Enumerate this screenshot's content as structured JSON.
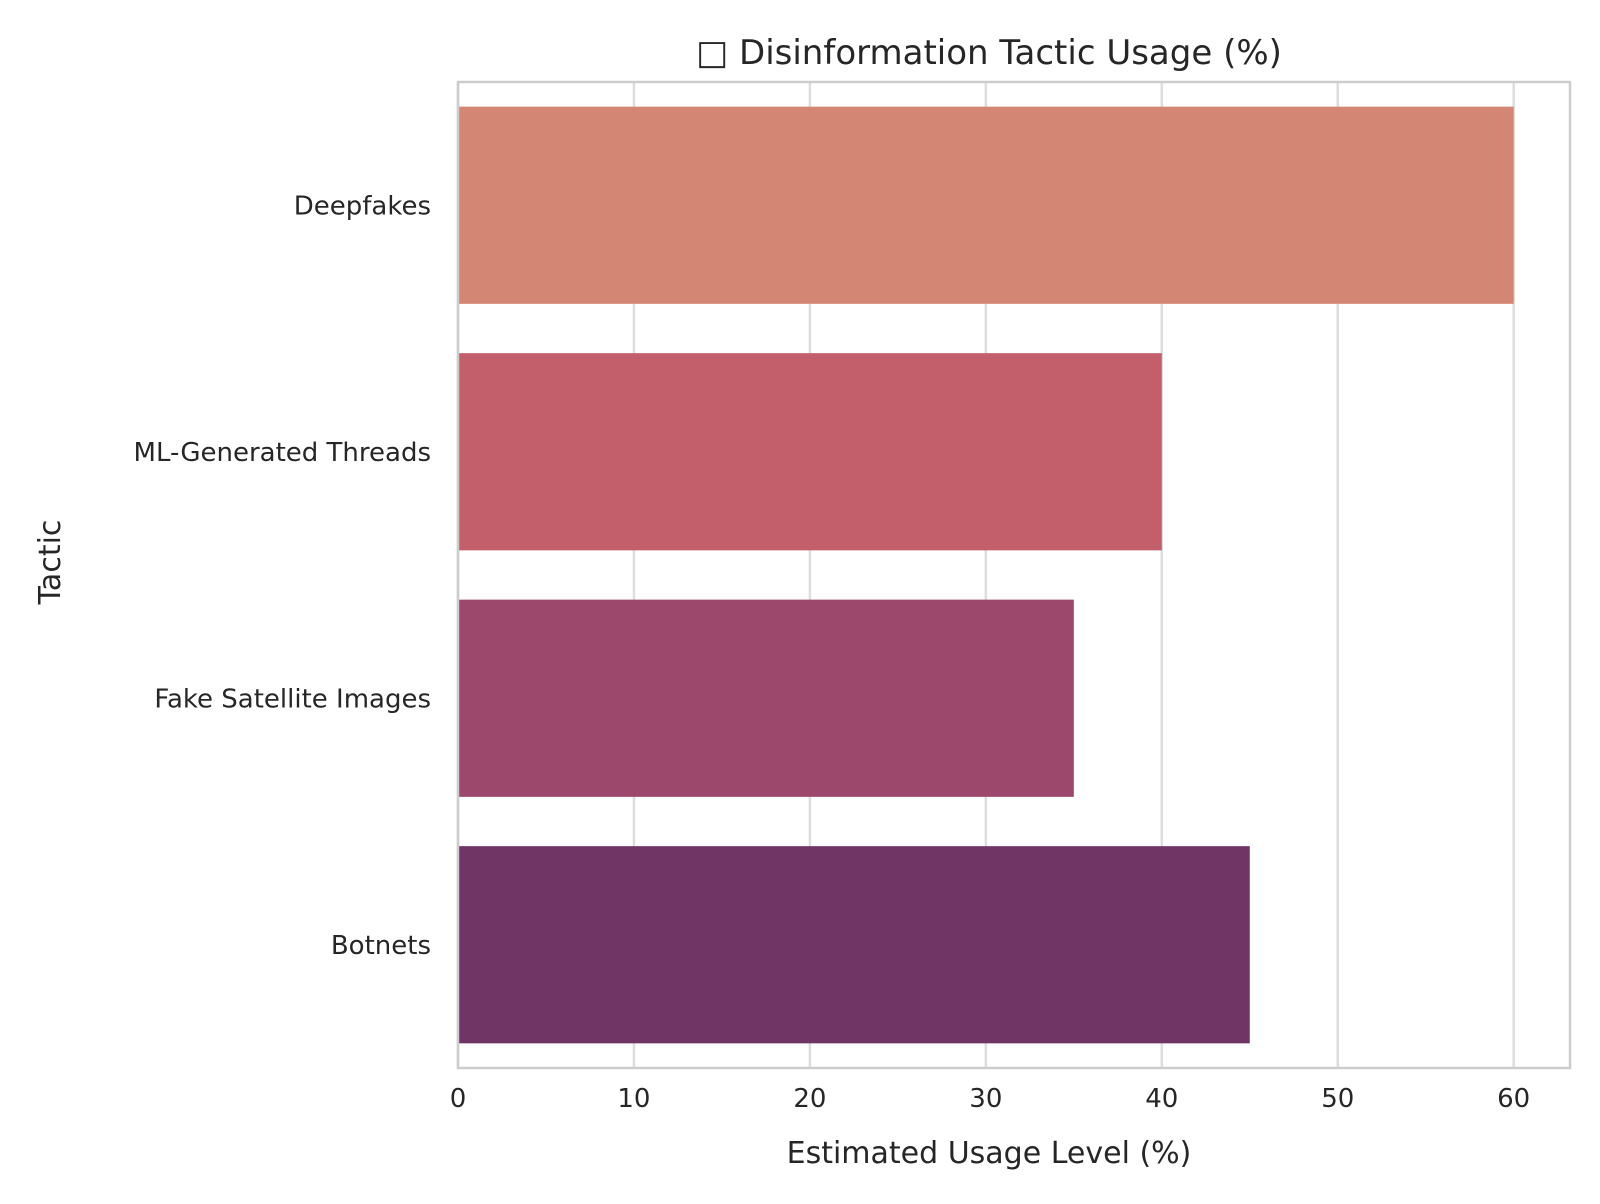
{
  "chart_data": {
    "type": "bar",
    "orientation": "horizontal",
    "title": "□ Disinformation Tactic Usage (%)",
    "xlabel": "Estimated Usage Level (%)",
    "ylabel": "Tactic",
    "categories": [
      "Deepfakes",
      "ML-Generated Threads",
      "Fake Satellite Images",
      "Botnets"
    ],
    "values": [
      60,
      40,
      35,
      45
    ],
    "colors": [
      "#d48674",
      "#c35e6b",
      "#9c476c",
      "#703565"
    ],
    "xlim": [
      0,
      63.2
    ],
    "xticks": [
      0,
      10,
      20,
      30,
      40,
      50,
      60
    ],
    "grid": true,
    "legend": "none"
  }
}
